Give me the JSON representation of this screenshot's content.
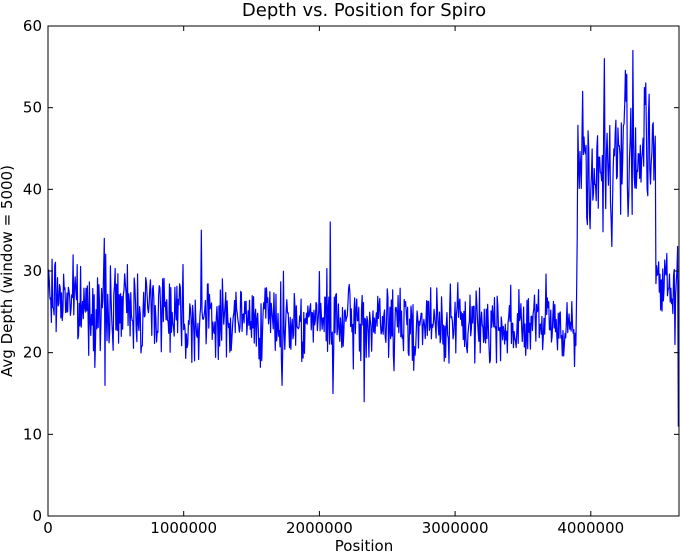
{
  "chart_data": {
    "type": "line",
    "title": "Depth vs. Position for Spiro",
    "xlabel": "Position",
    "ylabel": "Avg Depth (window = 5000)",
    "xlim": [
      0,
      4650000
    ],
    "ylim": [
      0,
      60
    ],
    "x_ticks": [
      0,
      1000000,
      2000000,
      3000000,
      4000000
    ],
    "x_tick_labels": [
      "0",
      "1000000",
      "2000000",
      "3000000",
      "4000000"
    ],
    "y_ticks": [
      0,
      10,
      20,
      30,
      40,
      50,
      60
    ],
    "y_tick_labels": [
      "0",
      "10",
      "20",
      "30",
      "40",
      "50",
      "60"
    ],
    "grid": false,
    "series_color": "#0000ff",
    "window": 5000,
    "segments": [
      {
        "x": [
          0,
          200000
        ],
        "mean": 27,
        "amp": 3.5
      },
      {
        "x": [
          200000,
          1000000
        ],
        "mean": 25.5,
        "amp": 4
      },
      {
        "x": [
          1000000,
          2100000
        ],
        "mean": 24,
        "amp": 3.5
      },
      {
        "x": [
          2100000,
          3900000
        ],
        "mean": 23.5,
        "amp": 3.5
      },
      {
        "x": [
          3900000,
          4200000
        ],
        "mean": 42,
        "amp": 6
      },
      {
        "x": [
          4200000,
          4480000
        ],
        "mean": 45,
        "amp": 7
      },
      {
        "x": [
          4480000,
          4650000
        ],
        "mean": 28,
        "amp": 3
      }
    ],
    "spikes": [
      {
        "x": 415000,
        "y": 34
      },
      {
        "x": 420000,
        "y": 16
      },
      {
        "x": 1130000,
        "y": 35
      },
      {
        "x": 1725000,
        "y": 16
      },
      {
        "x": 2080000,
        "y": 36
      },
      {
        "x": 2100000,
        "y": 15
      },
      {
        "x": 2330000,
        "y": 14
      },
      {
        "x": 3940000,
        "y": 52
      },
      {
        "x": 4100000,
        "y": 56
      },
      {
        "x": 4310000,
        "y": 57
      },
      {
        "x": 4620000,
        "y": 21
      },
      {
        "x": 4640000,
        "y": 33
      },
      {
        "x": 4645000,
        "y": 11
      }
    ]
  }
}
